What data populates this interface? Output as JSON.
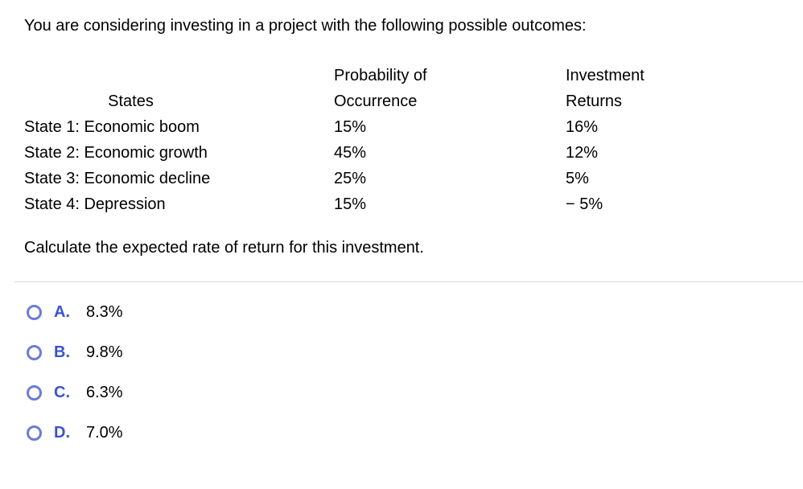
{
  "question": {
    "intro": "You are considering investing in a project with the following possible outcomes:",
    "table": {
      "headers": {
        "states": "States",
        "probability_line1": "Probability of",
        "probability_line2": "Occurrence",
        "returns_line1": "Investment",
        "returns_line2": "Returns"
      },
      "rows": [
        {
          "state": "State 1: Economic boom",
          "probability": "15%",
          "investment_return": "16%"
        },
        {
          "state": "State 2: Economic growth",
          "probability": "45%",
          "investment_return": "12%"
        },
        {
          "state": "State 3: Economic decline",
          "probability": "25%",
          "investment_return": "5%"
        },
        {
          "state": "State 4: Depression",
          "probability": "15%",
          "investment_return": "− 5%"
        }
      ]
    },
    "prompt": "Calculate the expected rate of return for this investment."
  },
  "options": [
    {
      "letter": "A.",
      "value": "8.3%"
    },
    {
      "letter": "B.",
      "value": "9.8%"
    },
    {
      "letter": "C.",
      "value": "6.3%"
    },
    {
      "letter": "D.",
      "value": "7.0%"
    }
  ],
  "colors": {
    "option_letter": "#3a53cf",
    "radio_border": "#6b7cd6",
    "divider": "#d9d9d9"
  }
}
